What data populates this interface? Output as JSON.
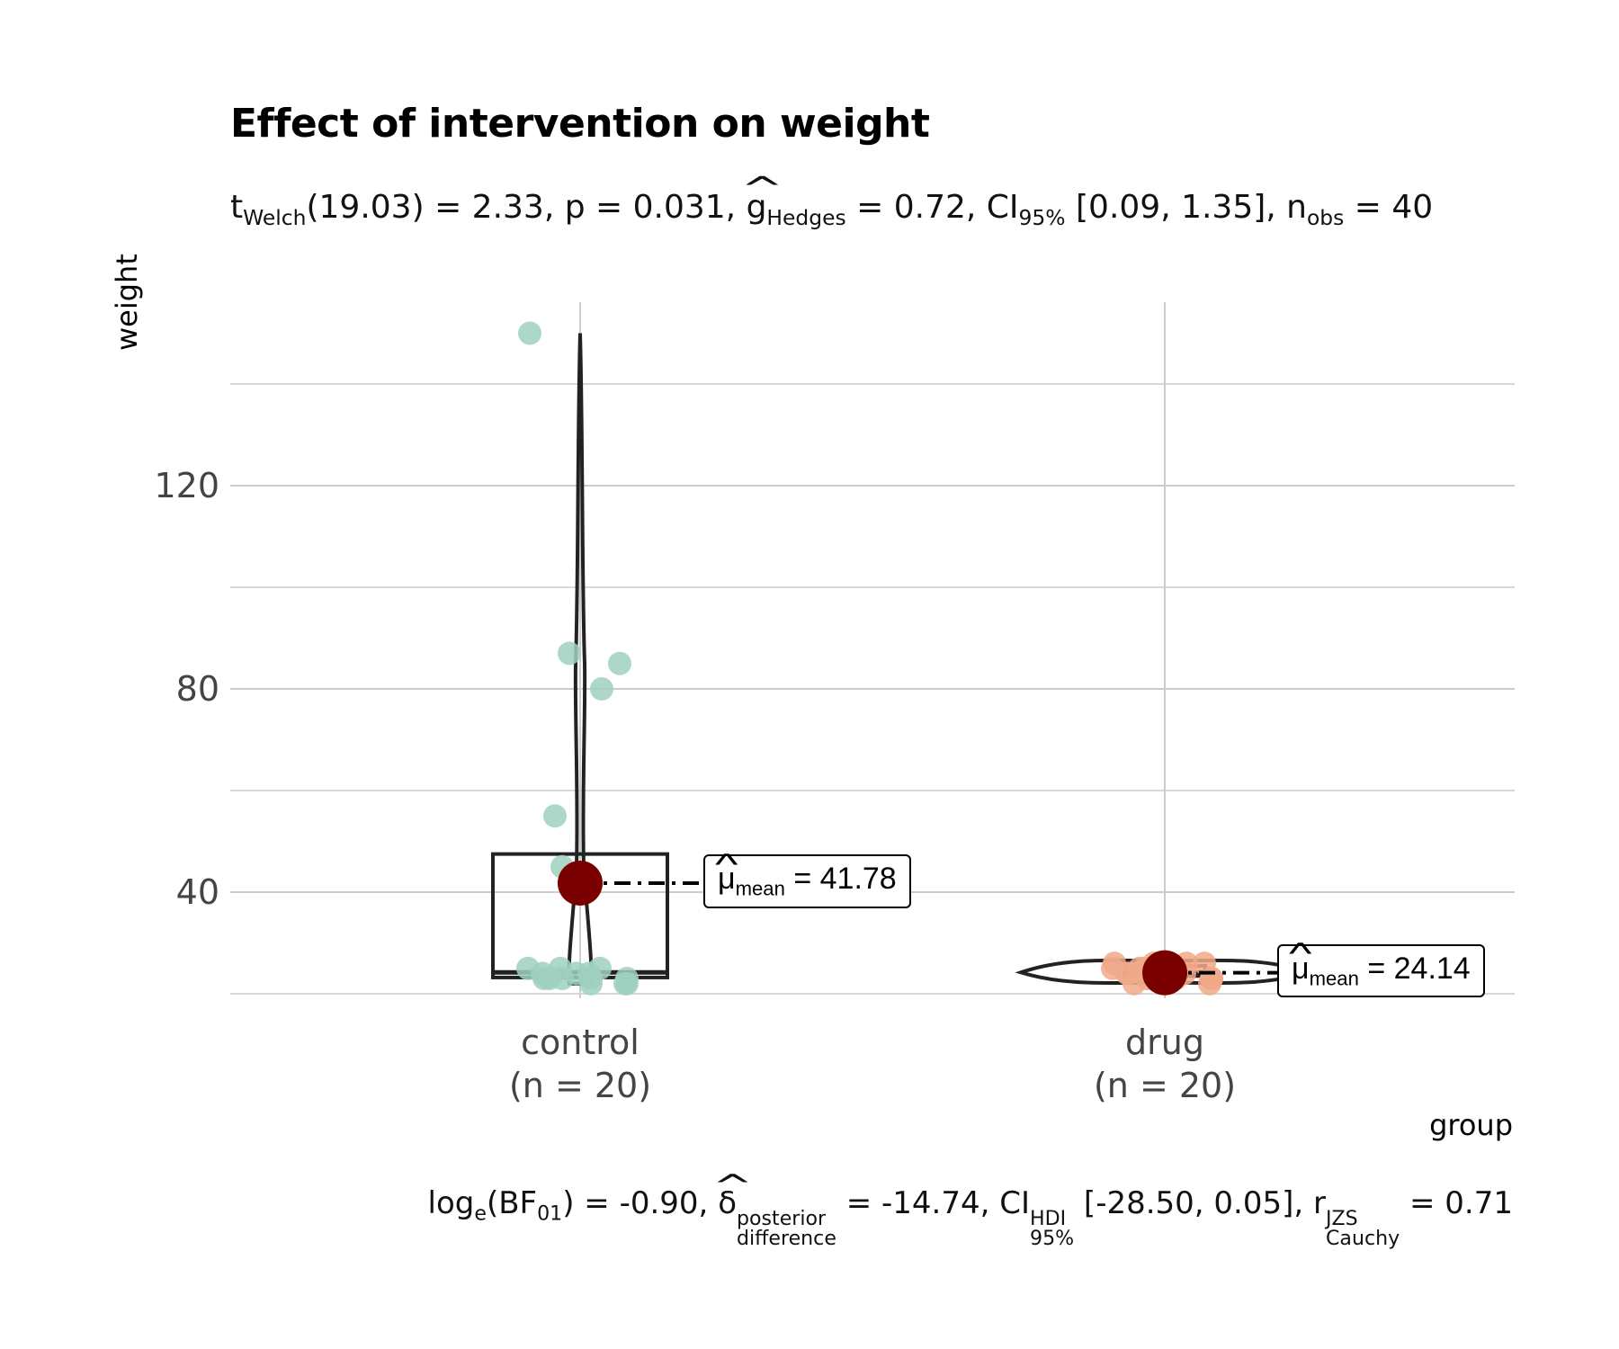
{
  "chart_data": {
    "type": "violin-box-scatter",
    "title": "Effect of intervention on weight",
    "subtitle": {
      "test": "t",
      "test_sub": "Welch",
      "df": "(19.03) = 2.33, p = 0.031, ",
      "effsize": "g",
      "effsize_sub": "Hedges",
      "effsize_val": " = 0.72, CI",
      "ci_sub": "95%",
      "ci_val": " [0.09, 1.35], n",
      "n_sub": "obs",
      "n_val": " = 40"
    },
    "caption": {
      "log": "log",
      "log_sub": "e",
      "bf": "(BF",
      "bf_sub": "01",
      "bf_val": ") = -0.90, ",
      "delta": "δ",
      "delta_sup": "posterior",
      "delta_sub": "difference",
      "delta_val": " = -14.74, CI",
      "hdi_sup": "HDI",
      "hdi_sub": "95%",
      "hdi_val": " [-28.50, 0.05], r",
      "r_sup": "JZS",
      "r_sub": "Cauchy",
      "r_val": " = 0.71"
    },
    "xlabel": "group",
    "ylabel": "weight",
    "ylim": [
      20,
      156
    ],
    "yticks": [
      40,
      80,
      120
    ],
    "categories": [
      "control",
      "drug"
    ],
    "category_labels": [
      "(n = 20)",
      "(n = 20)"
    ],
    "colors": {
      "control_points": "#9fd0bf",
      "drug_points": "#f0a98a",
      "mean": "#7a0000",
      "outline": "#222222",
      "grid": "#cccccc"
    },
    "series": [
      {
        "name": "control",
        "points": [
          150,
          87,
          85,
          80,
          55,
          45,
          25,
          25,
          25,
          24,
          24,
          24,
          23,
          23,
          23,
          23,
          22,
          22,
          22,
          23
        ],
        "mean": 41.78,
        "mean_label": "41.78",
        "box": {
          "q1": 23.2,
          "median": 24.2,
          "q3": 47.5
        },
        "range": [
          22,
          150
        ]
      },
      {
        "name": "drug",
        "points": [
          26,
          26,
          26,
          26,
          25,
          25,
          25,
          25,
          24,
          24,
          24,
          24,
          24,
          24,
          23,
          23,
          23,
          23,
          22,
          22
        ],
        "mean": 24.14,
        "mean_label": "24.14",
        "box": {
          "q1": 23.5,
          "median": 24.2,
          "q3": 25.5
        },
        "range": [
          22,
          26.5
        ]
      }
    ],
    "mean_label_prefix": "μ",
    "mean_label_sub": "mean",
    "mean_label_eq": " = "
  }
}
